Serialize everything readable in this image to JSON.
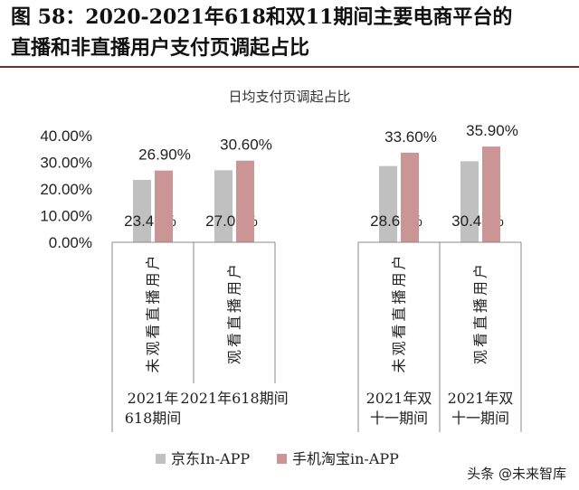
{
  "figure_title_line1": "图 58：2020-2021年618和双11期间主要电商平台的",
  "figure_title_line2": "直播和非直播用户支付页调起占比",
  "watermark": "头条 @未来智库",
  "colors": {
    "jd": "#c0c0c0",
    "taobao": "#cc9595",
    "title_rule": "#7a2a2a",
    "grid": "#d9d9d9"
  },
  "chart_data": {
    "type": "bar",
    "title": "日均支付页调起占比",
    "ylim": [
      0,
      0.4
    ],
    "yticks": [
      "0.00%",
      "10.00%",
      "20.00%",
      "30.00%",
      "40.00%"
    ],
    "categories": [
      "未观看直播用户",
      "观看直播用户",
      "未观看直播用户",
      "观看直播用户"
    ],
    "groups": [
      "2021年618期间",
      "2021年618期间",
      "2021年双十一期间",
      "2021年双十一期间"
    ],
    "group_labels": [
      {
        "lines": [
          "2021年",
          "618期间"
        ]
      },
      {
        "lines": [
          "2021年618期间"
        ]
      },
      {
        "lines": [
          "2021年双",
          "十一期间"
        ]
      },
      {
        "lines": [
          "2021年双",
          "十一期间"
        ]
      }
    ],
    "series": [
      {
        "name": "京东In-APP",
        "values": [
          0.234,
          0.27,
          0.286,
          0.304
        ],
        "labels": [
          "23.40%",
          "27.00%",
          "28.60%",
          "30.40%"
        ]
      },
      {
        "name": "手机淘宝in-APP",
        "values": [
          0.269,
          0.306,
          0.336,
          0.359
        ],
        "labels": [
          "26.90%",
          "30.60%",
          "33.60%",
          "35.90%"
        ]
      }
    ],
    "legend_position": "bottom-left",
    "grid": false
  }
}
